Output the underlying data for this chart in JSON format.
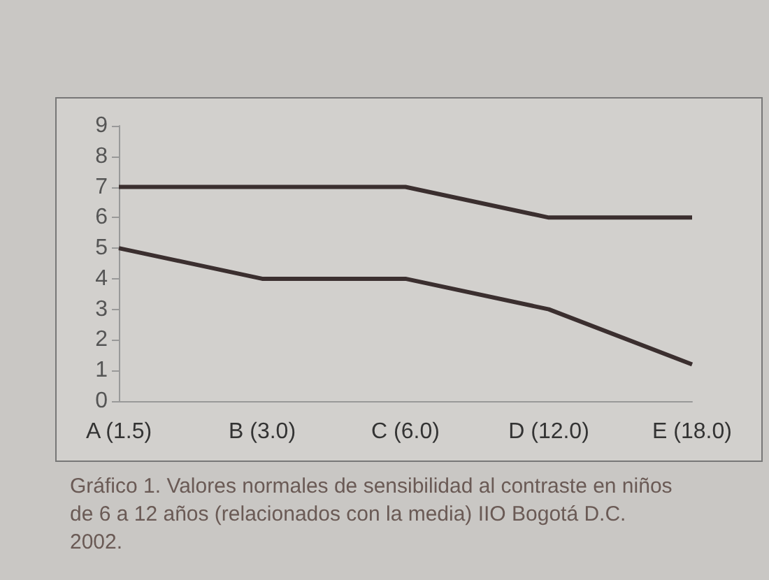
{
  "chart_data": {
    "type": "line",
    "categories": [
      "A (1.5)",
      "B (3.0)",
      "C (6.0)",
      "D (12.0)",
      "E (18.0)"
    ],
    "series": [
      {
        "color": "#3b2f2f",
        "values": [
          7,
          7,
          7,
          6,
          6
        ]
      },
      {
        "color": "#3b2f2f",
        "values": [
          5,
          4,
          4,
          3,
          1.2
        ]
      }
    ],
    "ylim": [
      0,
      9
    ],
    "yticks": [
      0,
      1,
      2,
      3,
      4,
      5,
      6,
      7,
      8,
      9
    ],
    "grid": false,
    "marker": "none",
    "line_style": "solid",
    "annotations": [
      "Gráfico 1. Valores normales de sensibilidad al contraste en niños de 6 a 12 años (relacionados con la media) IIO Bogotá D.C. 2002."
    ]
  }
}
